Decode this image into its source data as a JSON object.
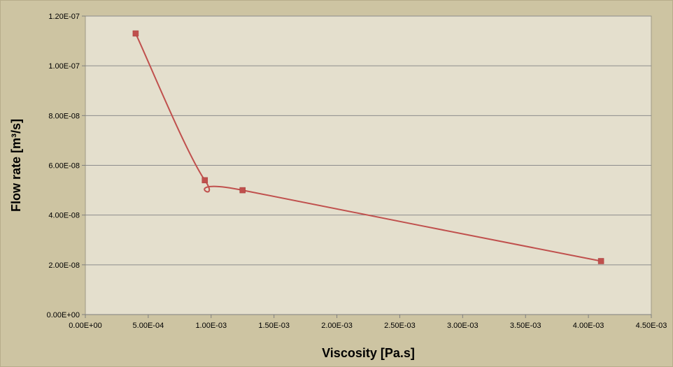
{
  "chart_data": {
    "type": "scatter",
    "smooth_line": true,
    "title": "",
    "xlabel": "Viscosity [Pa.s]",
    "ylabel": "Flow rate [m³/s]",
    "xlim": [
      0,
      0.0045
    ],
    "ylim": [
      0,
      1.2e-07
    ],
    "x_ticks": [
      0,
      0.0005,
      0.001,
      0.0015,
      0.002,
      0.0025,
      0.003,
      0.0035,
      0.004,
      0.0045
    ],
    "x_tick_labels": [
      "0.00E+00",
      "5.00E-04",
      "1.00E-03",
      "1.50E-03",
      "2.00E-03",
      "2.50E-03",
      "3.00E-03",
      "3.50E-03",
      "4.00E-03",
      "4.50E-03"
    ],
    "y_ticks": [
      0,
      2e-08,
      4e-08,
      6e-08,
      8e-08,
      1e-07,
      1.2e-07
    ],
    "y_tick_labels": [
      "0.00E+00",
      "2.00E-08",
      "4.00E-08",
      "6.00E-08",
      "8.00E-08",
      "1.00E-07",
      "1.20E-07"
    ],
    "grid": "horizontal",
    "legend": "none",
    "series": [
      {
        "x": [
          0.0004,
          0.00095,
          0.00125,
          0.0041
        ],
        "y": [
          1.13e-07,
          5.4e-08,
          5e-08,
          2.15e-08
        ]
      }
    ],
    "colors": {
      "background": "#cdc4a2",
      "plot_area": "#e4dfcd",
      "gridline": "#8c8c8c",
      "series": "#c0504d"
    }
  }
}
